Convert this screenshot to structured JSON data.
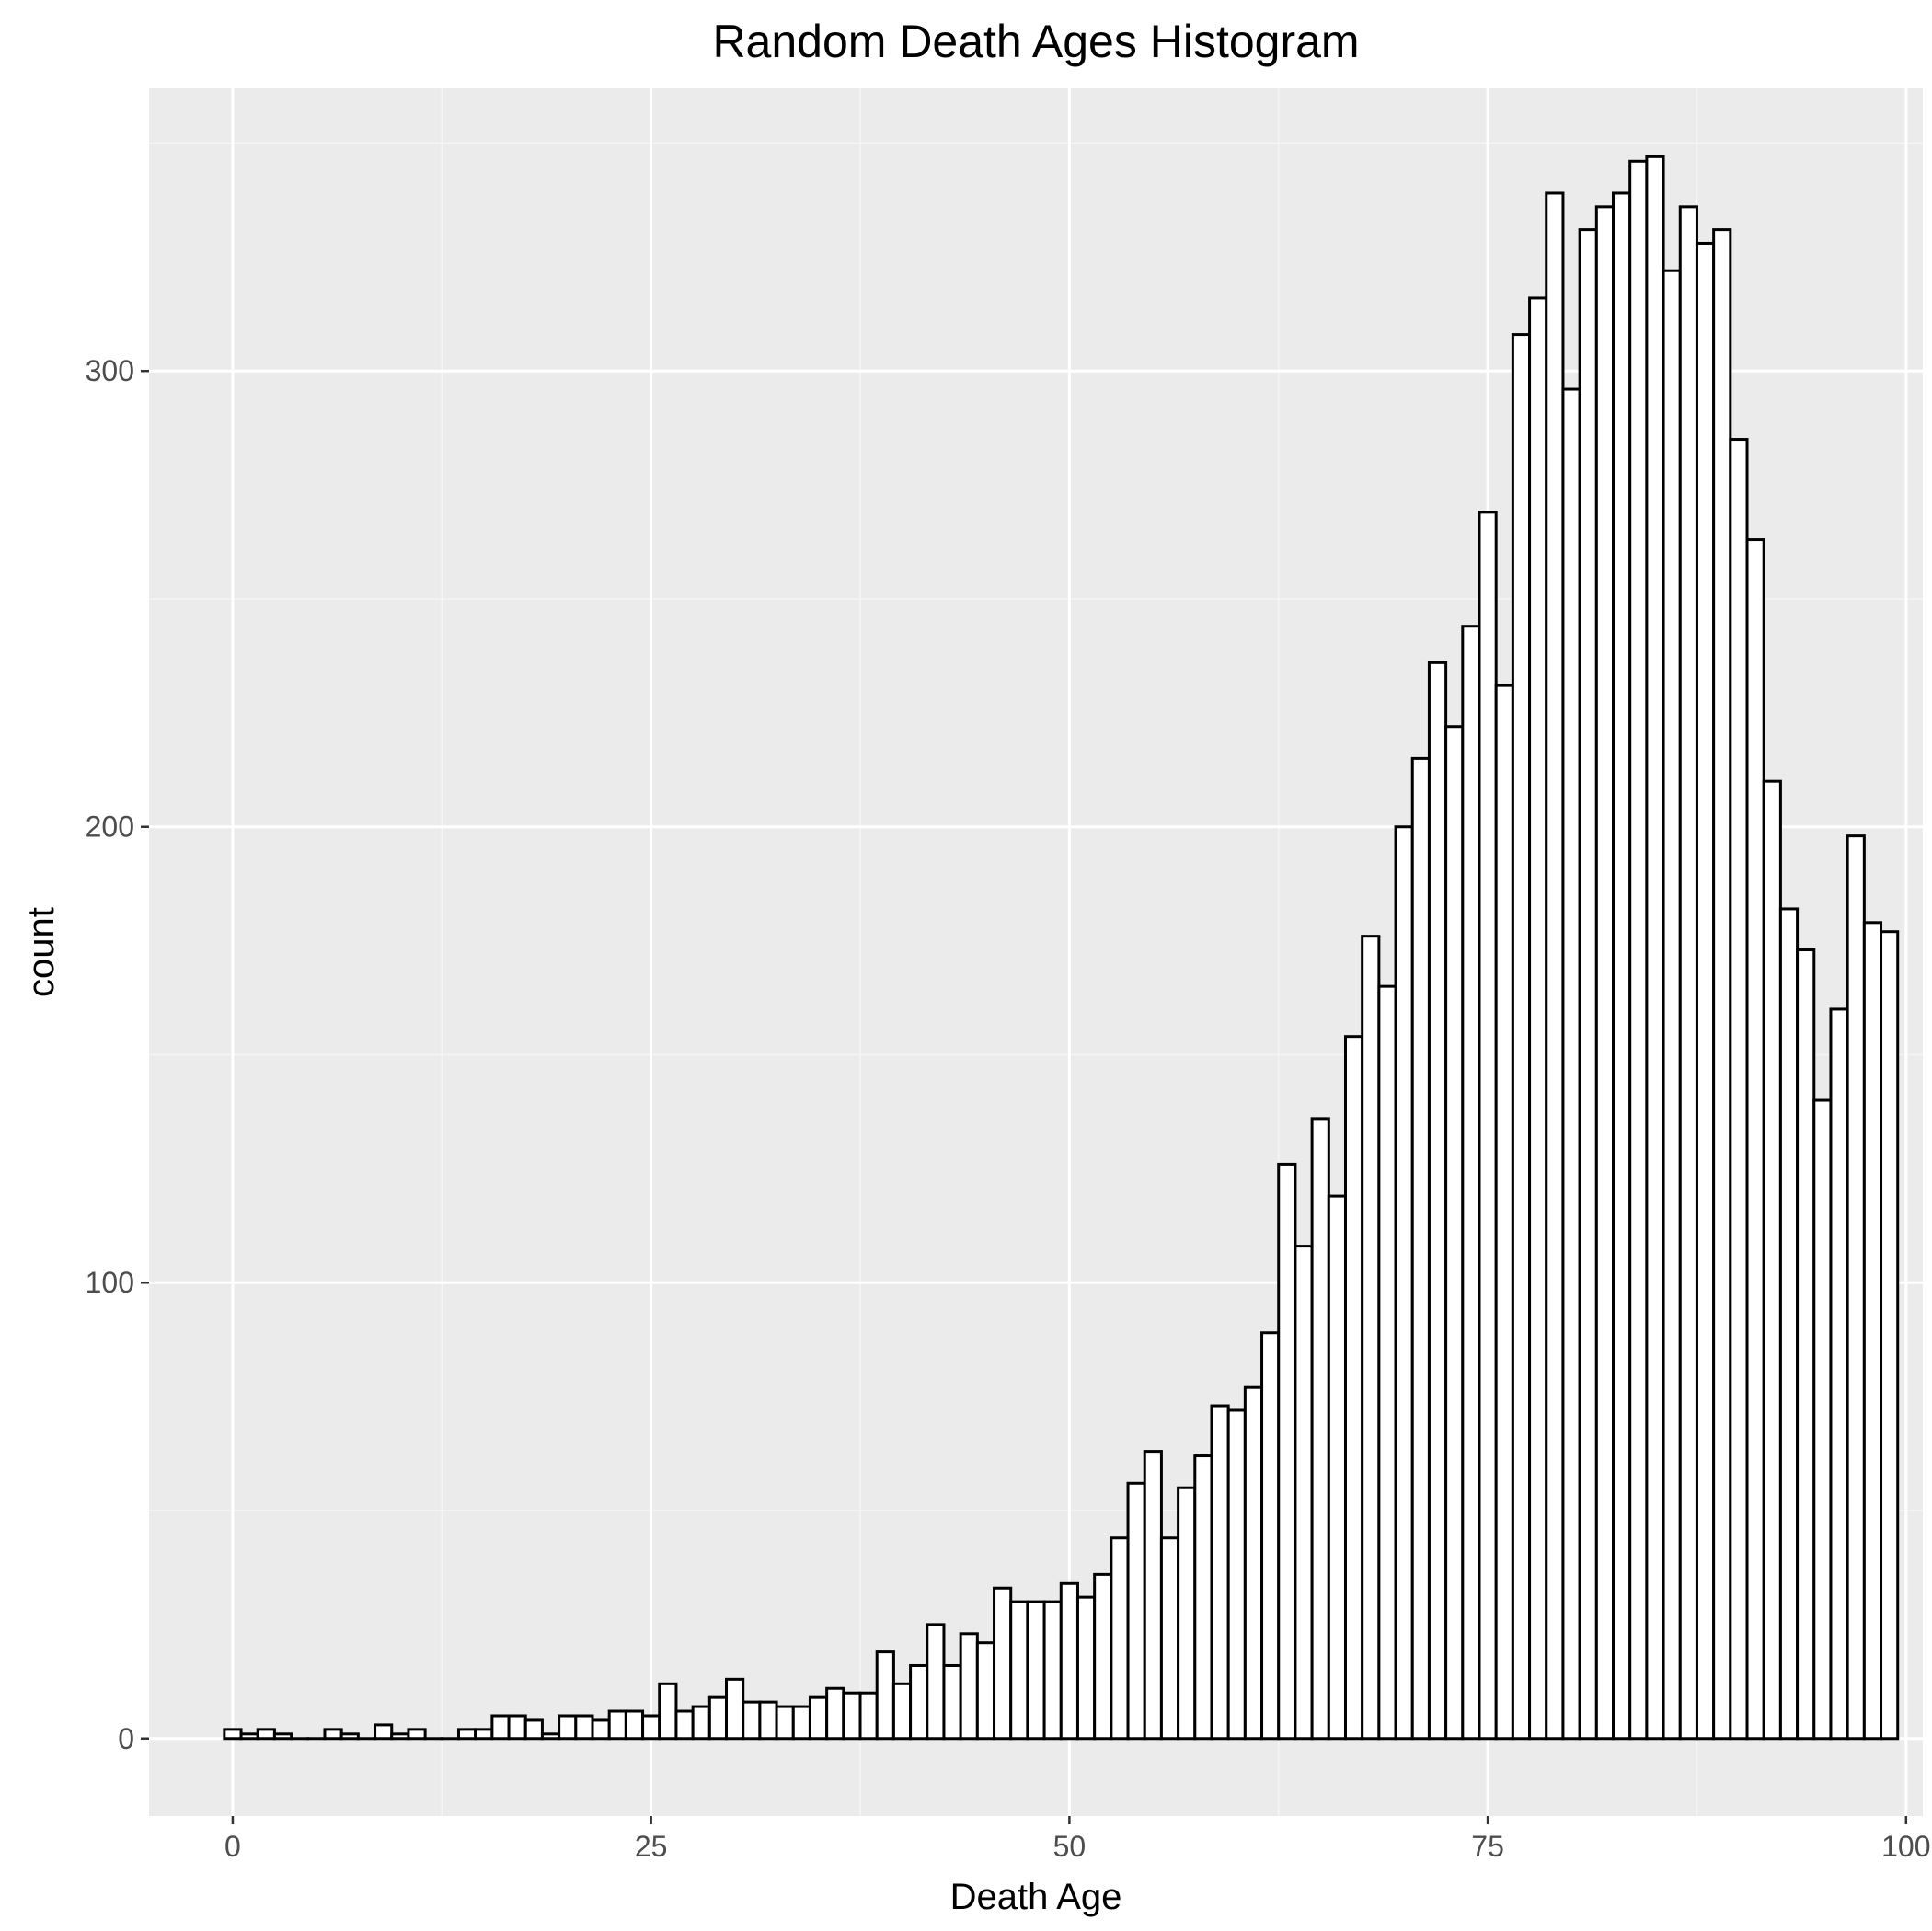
{
  "chart_data": {
    "type": "bar",
    "title": "Random Death Ages Histogram",
    "xlabel": "Death Age",
    "ylabel": "count",
    "xlim": [
      -5,
      101
    ],
    "ylim": [
      -17,
      362
    ],
    "x_ticks": [
      0,
      25,
      50,
      75,
      100
    ],
    "x_tick_labels": [
      "0",
      "25",
      "50",
      "75",
      "100"
    ],
    "y_ticks": [
      0,
      100,
      200,
      300
    ],
    "y_tick_labels": [
      "0",
      "100",
      "200",
      "300"
    ],
    "grid": true,
    "bin_width": 1,
    "bin_start": 0,
    "values": [
      2,
      1,
      2,
      1,
      0,
      0,
      2,
      1,
      0,
      3,
      1,
      2,
      0,
      0,
      2,
      2,
      5,
      5,
      4,
      1,
      5,
      5,
      4,
      6,
      6,
      5,
      12,
      6,
      7,
      9,
      13,
      8,
      8,
      7,
      7,
      9,
      11,
      10,
      10,
      19,
      12,
      16,
      25,
      16,
      23,
      21,
      33,
      30,
      30,
      30,
      34,
      31,
      36,
      44,
      56,
      63,
      44,
      55,
      62,
      73,
      72,
      77,
      89,
      126,
      108,
      136,
      119,
      154,
      176,
      165,
      200,
      215,
      236,
      222,
      244,
      269,
      231,
      308,
      316,
      339,
      296,
      331,
      336,
      339,
      346,
      347,
      322,
      336,
      328,
      331,
      285,
      263,
      210,
      182,
      173,
      140,
      160,
      198,
      179,
      177
    ],
    "colors": {
      "panel_background": "#ebebeb",
      "grid_major": "#ffffff",
      "grid_minor": "#f5f5f5",
      "bar_fill": "#ffffff",
      "bar_outline": "#000000",
      "tick_label": "#4d4d4d"
    }
  }
}
